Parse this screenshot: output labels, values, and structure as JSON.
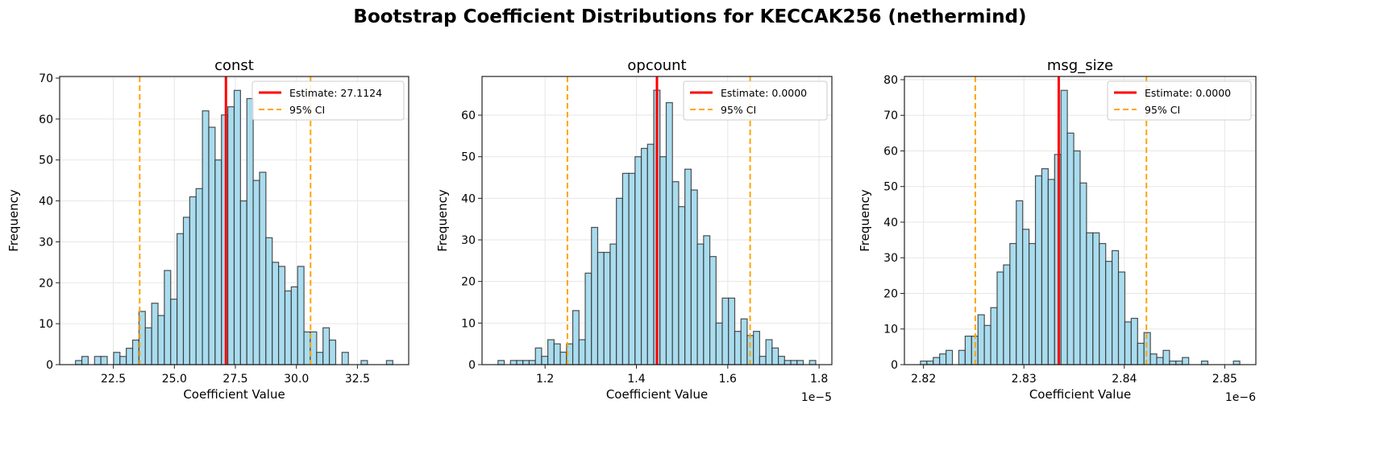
{
  "title": "Bootstrap Coefficient Distributions for KECCAK256 (nethermind)",
  "colors": {
    "bar_fill": "#a9dcee",
    "bar_edge": "#333333",
    "estimate": "#ff0000",
    "ci": "#ffa500",
    "grid": "#e6e6e6"
  },
  "chart_data": [
    {
      "type": "bar",
      "subtype": "histogram",
      "title": "const",
      "xlabel": "Coefficient Value",
      "ylabel": "Frequency",
      "offset_text": "",
      "bin_start": 20.95,
      "bin_width": 0.26,
      "counts": [
        1,
        2,
        0,
        2,
        2,
        0,
        3,
        2,
        4,
        6,
        13,
        9,
        15,
        12,
        23,
        16,
        32,
        36,
        41,
        43,
        62,
        58,
        50,
        61,
        63,
        67,
        40,
        65,
        45,
        47,
        31,
        25,
        24,
        18,
        19,
        24,
        8,
        8,
        3,
        9,
        6,
        0,
        3,
        0,
        0,
        1,
        0,
        0,
        0,
        1
      ],
      "estimate": 27.1124,
      "ci": [
        23.58,
        30.58
      ],
      "xlim": [
        20.3,
        34.6
      ],
      "ylim": [
        0,
        70.4
      ],
      "xticks": [
        22.5,
        25,
        27.5,
        30,
        32.5
      ],
      "xtick_labels": [
        "22.5",
        "25.0",
        "27.5",
        "30.0",
        "32.5"
      ],
      "yticks": [
        0,
        10,
        20,
        30,
        40,
        50,
        60,
        70
      ],
      "ytick_labels": [
        "0",
        "10",
        "20",
        "30",
        "40",
        "50",
        "60",
        "70"
      ],
      "grid": true,
      "legend_position": "top-right",
      "legend": {
        "estimate": "Estimate: 27.1124",
        "ci": "95% CI"
      }
    },
    {
      "type": "bar",
      "subtype": "histogram",
      "title": "opcount",
      "xlabel": "Coefficient Value",
      "ylabel": "Frequency",
      "offset_text": "1e−5",
      "bin_start": 1.097,
      "bin_width": 0.01364,
      "counts": [
        1,
        0,
        1,
        1,
        1,
        1,
        4,
        2,
        6,
        5,
        3,
        5,
        13,
        6,
        22,
        33,
        27,
        27,
        29,
        40,
        46,
        46,
        50,
        52,
        53,
        66,
        50,
        63,
        44,
        38,
        47,
        42,
        29,
        31,
        26,
        10,
        16,
        16,
        8,
        11,
        7,
        8,
        2,
        6,
        4,
        2,
        1,
        1,
        1,
        0,
        1
      ],
      "estimate": 1.445,
      "ci": [
        1.249,
        1.649
      ],
      "xlim": [
        1.062,
        1.828
      ],
      "ylim": [
        0,
        69.3
      ],
      "xticks": [
        1.2,
        1.4,
        1.6,
        1.8
      ],
      "xtick_labels": [
        "1.2",
        "1.4",
        "1.6",
        "1.8"
      ],
      "yticks": [
        0,
        10,
        20,
        30,
        40,
        50,
        60
      ],
      "ytick_labels": [
        "0",
        "10",
        "20",
        "30",
        "40",
        "50",
        "60"
      ],
      "grid": true,
      "legend_position": "top-right",
      "legend": {
        "estimate": "Estimate: 0.0000",
        "ci": "95% CI"
      }
    },
    {
      "type": "bar",
      "subtype": "histogram",
      "title": "msg_size",
      "xlabel": "Coefficient Value",
      "ylabel": "Frequency",
      "offset_text": "1e−6",
      "bin_start": 2.8197,
      "bin_width": 0.000636,
      "counts": [
        1,
        1,
        2,
        3,
        4,
        0,
        4,
        8,
        8,
        14,
        11,
        16,
        26,
        28,
        34,
        46,
        38,
        34,
        53,
        55,
        52,
        59,
        77,
        65,
        60,
        51,
        37,
        37,
        34,
        29,
        32,
        26,
        12,
        13,
        6,
        9,
        3,
        2,
        4,
        1,
        1,
        2,
        0,
        0,
        1,
        0,
        0,
        0,
        0,
        1
      ],
      "estimate": 2.83347,
      "ci": [
        2.82516,
        2.8422
      ],
      "xlim": [
        2.8181,
        2.8531
      ],
      "ylim": [
        0,
        80.9
      ],
      "xticks": [
        2.82,
        2.83,
        2.84,
        2.85
      ],
      "xtick_labels": [
        "2.82",
        "2.83",
        "2.84",
        "2.85"
      ],
      "yticks": [
        0,
        10,
        20,
        30,
        40,
        50,
        60,
        70,
        80
      ],
      "ytick_labels": [
        "0",
        "10",
        "20",
        "30",
        "40",
        "50",
        "60",
        "70",
        "80"
      ],
      "grid": true,
      "legend_position": "top-right",
      "legend": {
        "estimate": "Estimate: 0.0000",
        "ci": "95% CI"
      }
    }
  ]
}
